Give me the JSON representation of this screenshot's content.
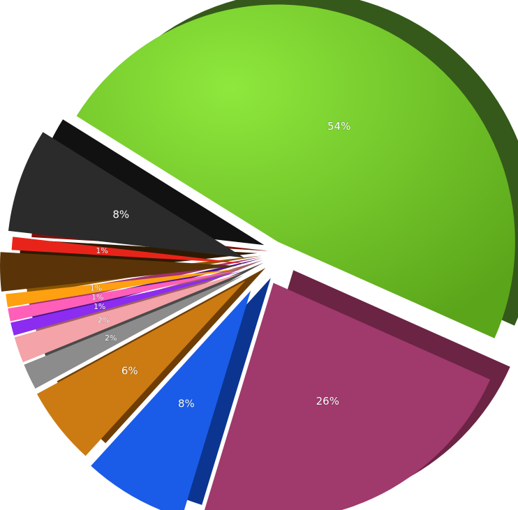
{
  "chart_data": {
    "type": "pie",
    "title": "",
    "legend": "none",
    "three_d": true,
    "slices": [
      {
        "value": 54,
        "label": "54%",
        "color": "#6bbf1e",
        "side_color": "#35591a"
      },
      {
        "value": 26,
        "label": "26%",
        "color": "#a0396c",
        "side_color": "#6b2444"
      },
      {
        "value": 8,
        "label": "8%",
        "color": "#1a5ce8",
        "side_color": "#0b3591"
      },
      {
        "value": 6,
        "label": "6%",
        "color": "#cc7a12",
        "side_color": "#6e3d05"
      },
      {
        "value": 2,
        "label": "2%",
        "color": "#8c8c8c",
        "side_color": "#4a4a4a"
      },
      {
        "value": 2,
        "label": "2%",
        "color": "#f4a3a8",
        "side_color": "#a05f63"
      },
      {
        "value": 1,
        "label": "1%",
        "color": "#8b2cf0",
        "side_color": "#4c158a"
      },
      {
        "value": 1,
        "label": "1%",
        "color": "#ff5fb8",
        "side_color": "#a03270"
      },
      {
        "value": 1,
        "label": "1%",
        "color": "#ffa010",
        "side_color": "#8a5400"
      },
      {
        "value": 3,
        "label": "",
        "color": "#5a3408",
        "side_color": "#2e1a03"
      },
      {
        "value": 1,
        "label": "1%",
        "color": "#e8241a",
        "side_color": "#7d120c"
      },
      {
        "value": 8,
        "label": "8%",
        "color": "#2b2b2b",
        "side_color": "#111111"
      }
    ]
  }
}
